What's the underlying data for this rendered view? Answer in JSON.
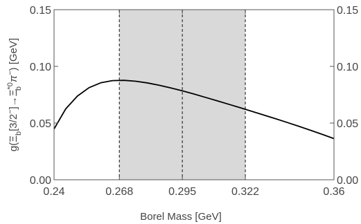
{
  "chart_data": {
    "type": "line",
    "title": "",
    "xlabel": "Borel Mass [GeV]",
    "ylabel_parts": {
      "g": "g(",
      "xi": "Ξ",
      "b1": "b",
      "mid": "[3/2",
      "minus1": "−",
      "arrow": "]→",
      "xi2": "Ξ",
      "star0": "*0",
      "b2": "b",
      "pi": "π",
      "minus2": "−",
      "close": ") [GeV]"
    },
    "xlim": [
      0.24,
      0.36
    ],
    "ylim": [
      0.0,
      0.15
    ],
    "x_ticks": [
      "0.24",
      "0.268",
      "0.295",
      "0.322",
      "0.36"
    ],
    "y_ticks": [
      "0.00",
      "0.05",
      "0.10",
      "0.15"
    ],
    "grid": false,
    "shaded_region": {
      "x_start": 0.268,
      "x_end": 0.322,
      "color": "#d9d9d9"
    },
    "dashed_lines": [
      0.268,
      0.295,
      0.322
    ],
    "series": [
      {
        "color": "#000000",
        "x": [
          0.24,
          0.245,
          0.25,
          0.255,
          0.26,
          0.265,
          0.27,
          0.275,
          0.28,
          0.285,
          0.29,
          0.295,
          0.3,
          0.305,
          0.31,
          0.315,
          0.32,
          0.325,
          0.33,
          0.335,
          0.34,
          0.345,
          0.35,
          0.355,
          0.36
        ],
        "values": [
          0.0448,
          0.0625,
          0.0738,
          0.0812,
          0.0855,
          0.0874,
          0.0877,
          0.0869,
          0.0854,
          0.0834,
          0.081,
          0.0784,
          0.0756,
          0.0726,
          0.0696,
          0.0665,
          0.0634,
          0.0602,
          0.057,
          0.0538,
          0.0505,
          0.0471,
          0.0436,
          0.04,
          0.0363
        ]
      }
    ]
  }
}
